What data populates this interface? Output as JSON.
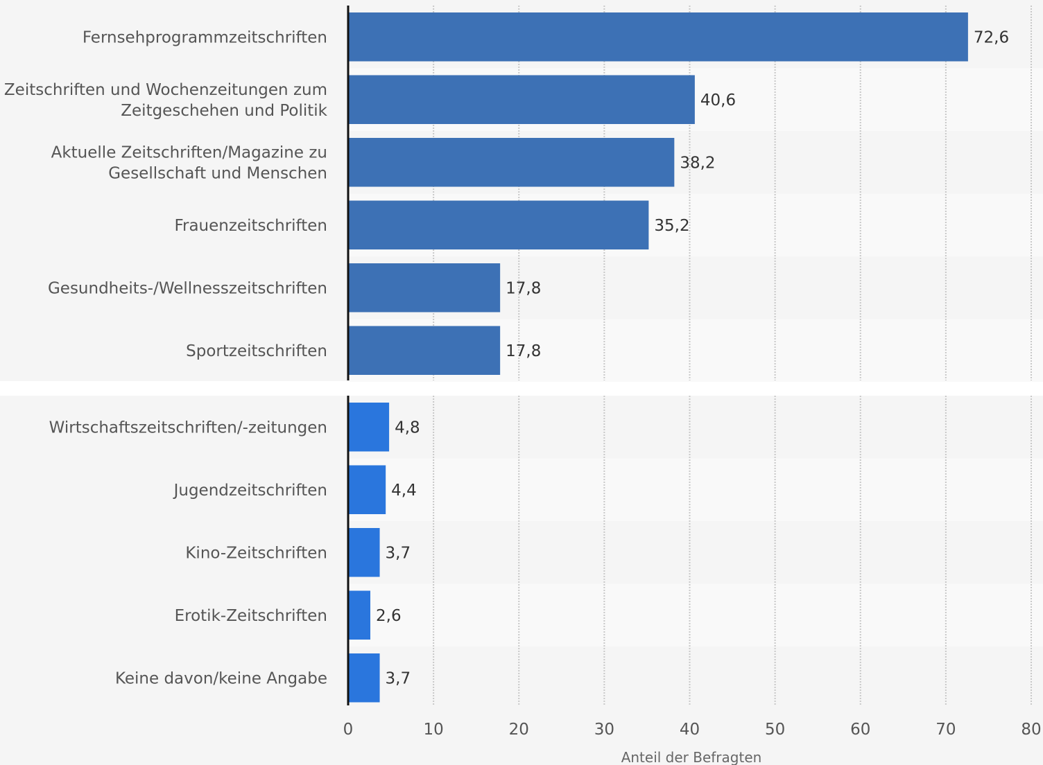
{
  "chart_data": [
    {
      "type": "bar",
      "orientation": "horizontal",
      "categories": [
        "Fernsehprogrammzeitschriften",
        "Zeitschriften und Wochenzeitungen zum Zeitgeschehen und Politik",
        "Aktuelle Zeitschriften/Magazine zu Gesellschaft und Menschen",
        "Frauenzeitschriften",
        "Gesundheits-/Wellnesszeitschriften",
        "Sportzeitschriften"
      ],
      "category_lines": [
        [
          "Fernsehprogrammzeitschriften"
        ],
        [
          "Zeitschriften und Wochenzeitungen zum",
          "Zeitgeschehen und Politik"
        ],
        [
          "Aktuelle Zeitschriften/Magazine zu",
          "Gesellschaft und Menschen"
        ],
        [
          "Frauenzeitschriften"
        ],
        [
          "Gesundheits-/Wellnesszeitschriften"
        ],
        [
          "Sportzeitschriften"
        ]
      ],
      "values": [
        72.6,
        40.6,
        38.2,
        35.2,
        17.8,
        17.8
      ],
      "value_labels": [
        "72,6",
        "40,6",
        "38,2",
        "35,2",
        "17,8",
        "17,8"
      ],
      "bar_color": "#3d71b5",
      "xlim": [
        0,
        80
      ],
      "grid": true
    },
    {
      "type": "bar",
      "orientation": "horizontal",
      "categories": [
        "Wirtschaftszeitschriften/-zeitungen",
        "Jugendzeitschriften",
        "Kino-Zeitschriften",
        "Erotik-Zeitschriften",
        "Keine davon/keine Angabe"
      ],
      "category_lines": [
        [
          "Wirtschaftszeitschriften/-zeitungen"
        ],
        [
          "Jugendzeitschriften"
        ],
        [
          "Kino-Zeitschriften"
        ],
        [
          "Erotik-Zeitschriften"
        ],
        [
          "Keine davon/keine Angabe"
        ]
      ],
      "values": [
        4.8,
        4.4,
        3.7,
        2.6,
        3.7
      ],
      "value_labels": [
        "4,8",
        "4,4",
        "3,7",
        "2,6",
        "3,7"
      ],
      "bar_color": "#2a76dd",
      "xlim": [
        0,
        80
      ],
      "xticks": [
        0,
        10,
        20,
        30,
        40,
        50,
        60,
        70,
        80
      ],
      "xlabel": "Anteil der Befragten",
      "grid": true
    }
  ],
  "colors": {
    "background": "#f5f5f5",
    "band_light": "#f9f9f9",
    "separator": "#ffffff",
    "grid": "#c8c8c8",
    "axis": "#111111"
  }
}
